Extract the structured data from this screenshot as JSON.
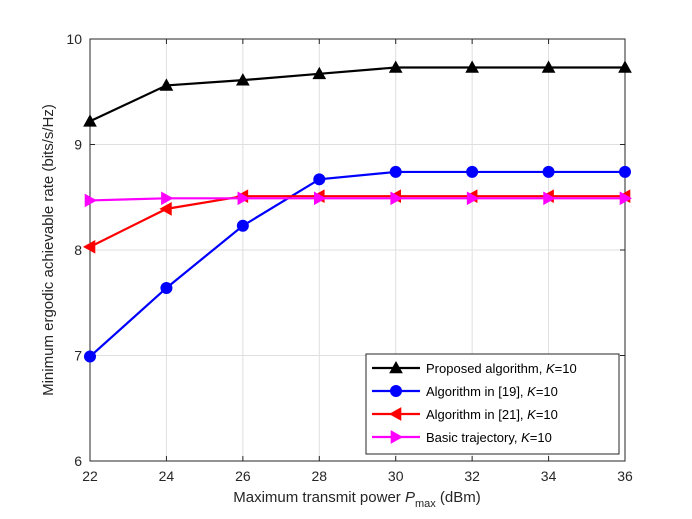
{
  "chart_data": {
    "type": "line",
    "title": "",
    "xlabel_prefix": "Maximum transmit power  ",
    "xlabel_var": "P",
    "xlabel_sub": "max",
    "xlabel_suffix": " (dBm)",
    "ylabel": "Minimum ergodic achievable rate (bits/s/Hz)",
    "x": [
      22,
      24,
      26,
      28,
      30,
      32,
      34,
      36
    ],
    "xlim": [
      22,
      36
    ],
    "ylim": [
      6,
      10
    ],
    "xticks": [
      "22",
      "24",
      "26",
      "28",
      "30",
      "32",
      "34",
      "36"
    ],
    "yticks": [
      "6",
      "7",
      "8",
      "9",
      "10"
    ],
    "grid": true,
    "legend_position": "lower-right",
    "series": [
      {
        "name": "Proposed algorithm,",
        "k_var": "K",
        "k_value": "=10",
        "color": "#000000",
        "marker": "triangle-up",
        "values": [
          9.22,
          9.56,
          9.61,
          9.67,
          9.73,
          9.73,
          9.73,
          9.73
        ]
      },
      {
        "name": "Algorithm in [19],",
        "k_var": "K",
        "k_value": "=10",
        "color": "#0000ff",
        "marker": "circle",
        "values": [
          6.99,
          7.64,
          8.23,
          8.67,
          8.74,
          8.74,
          8.74,
          8.74
        ]
      },
      {
        "name": "Algorithm in [21],",
        "k_var": "K",
        "k_value": "=10",
        "color": "#ff0000",
        "marker": "triangle-left",
        "values": [
          8.03,
          8.39,
          8.51,
          8.51,
          8.51,
          8.51,
          8.51,
          8.51
        ]
      },
      {
        "name": "Basic trajectory,",
        "k_var": "K",
        "k_value": "=10",
        "color": "#ff00ff",
        "marker": "triangle-right",
        "values": [
          8.47,
          8.49,
          8.49,
          8.49,
          8.49,
          8.49,
          8.49,
          8.49
        ]
      }
    ]
  }
}
